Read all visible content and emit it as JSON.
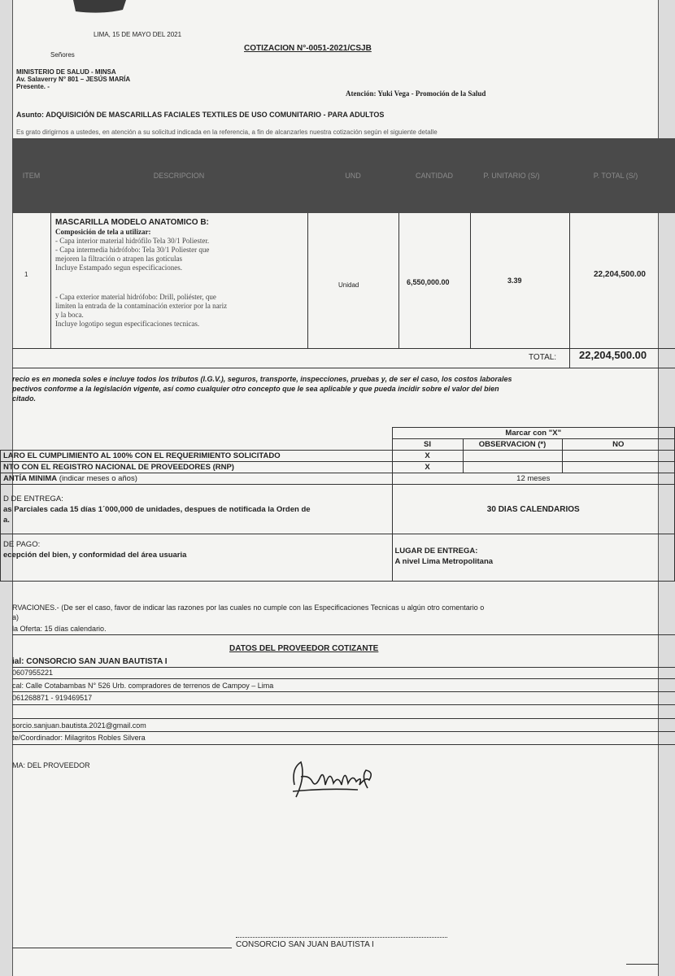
{
  "header": {
    "date": "LIMA, 15 DE MAYO DEL 2021",
    "title": "COTIZACION N°-0051-2021/CSJB",
    "salutation": "Señores",
    "addressee": [
      "MINISTERIO DE SALUD - MINSA",
      "Av. Salaverry N° 801 – JESÚS MARÍA",
      "Presente. -"
    ],
    "attention": "Atención: Yuki Vega - Promoción de la Salud",
    "subject": "Asunto: ADQUISICIÓN DE MASCARILLAS FACIALES TEXTILES DE USO COMUNITARIO - PARA ADULTOS",
    "intro": "Es grato dirigirnos a ustedes, en atención a su solicitud indicada en la referencia, a fin de alcanzarles nuestra cotización según el siguiente detalle"
  },
  "quote_table": {
    "columns": [
      "ITEM",
      "DESCRIPCION",
      "UND",
      "CANTIDAD",
      "P. UNITARIO (S/)",
      "P. TOTAL (S/)"
    ],
    "rows": [
      {
        "item": "1",
        "description_title": "MASCARILLA MODELO ANATOMICO B:",
        "description_subtitle": "Composición de tela a utilizar:",
        "description_lines": [
          "- Capa interior material hidrófilo Tela 30/1 Poliester.",
          "- Capa intermedia hidrófobo: Tela 30/1 Poliester que",
          "mejoren la filtración o atrapen las gotículas",
          "Incluye Estampado segun especificaciones.",
          "- Capa exterior material hidrófobo: Drill, poliéster, que",
          "limiten la entrada de la contaminación exterior por la nariz",
          "y la boca.",
          "Incluye logotipo segun especificaciones tecnicas."
        ],
        "unit": "Unidad",
        "quantity": "6,550,000.00",
        "unit_price": "3.39",
        "total": "22,204,500.00"
      }
    ],
    "total_label": "TOTAL:",
    "total_value": "22,204,500.00"
  },
  "price_note": [
    "recio es en moneda soles e incluye todos los tributos (I.G.V.), seguros, transporte, inspecciones, pruebas y, de ser el caso, los costos laborales",
    "pectivos conforme a la legislación vigente, así como cualquier otro concepto que le sea aplicable y que pueda incidir sobre el valor del bien",
    "citado."
  ],
  "conditions": {
    "mark_header": "Marcar con \"X\"",
    "columns": [
      "SI",
      "OBSERVACION (*)",
      "NO"
    ],
    "compliance": {
      "label": "LARO EL CUMPLIMIENTO AL 100% CON EL REQUERIMIENTO SOLICITADO",
      "si": "X"
    },
    "rnp": {
      "label": "NTO CON EL REGISTRO NACIONAL DE PROVEEDORES (RNP)",
      "si": "X"
    },
    "warranty": {
      "label": "ANTÍA MINIMA",
      "hint": "(indicar meses o años)",
      "value": "12 meses"
    },
    "delivery_term": {
      "label": "D DE ENTREGA:",
      "lines": [
        "as Parciales cada 15 días 1´000,000 de unidades, despues de notificada la Orden de",
        "a."
      ],
      "value": "30 DIAS CALENDARIOS"
    },
    "payment": {
      "label": "DE PAGO:",
      "text": "ecepción del bien, y conformidad del área usuaria",
      "place_label": "LUGAR DE ENTREGA:",
      "place_value": "A nivel Lima Metropolitana"
    }
  },
  "observations": {
    "label": "RVACIONES.-",
    "lines": [
      "(De ser el caso, favor de indicar las razones por las cuales no cumple con las Especificaciones Tecnicas u algún otro comentario o",
      "a)"
    ],
    "validity": "la Oferta: 15 días calendario."
  },
  "supplier": {
    "title": "DATOS DEL PROVEEDOR COTIZANTE",
    "name": "ial: CONSORCIO SAN JUAN BAUTISTA I",
    "ruc": "0607955221",
    "address": "cal: Calle Cotabambas N° 526 Urb. compradores de terrenos de Campoy  – Lima",
    "phones": "061268871 - 919469517",
    "email": "sorcio.sanjuan.bautista.2021@gmail.com",
    "contact": "te/Coordinador: Milagritos Robles Silvera"
  },
  "signature": {
    "label": "MA: DEL PROVEEDOR",
    "footer": "CONSORCIO SAN JUAN BAUTISTA I"
  }
}
